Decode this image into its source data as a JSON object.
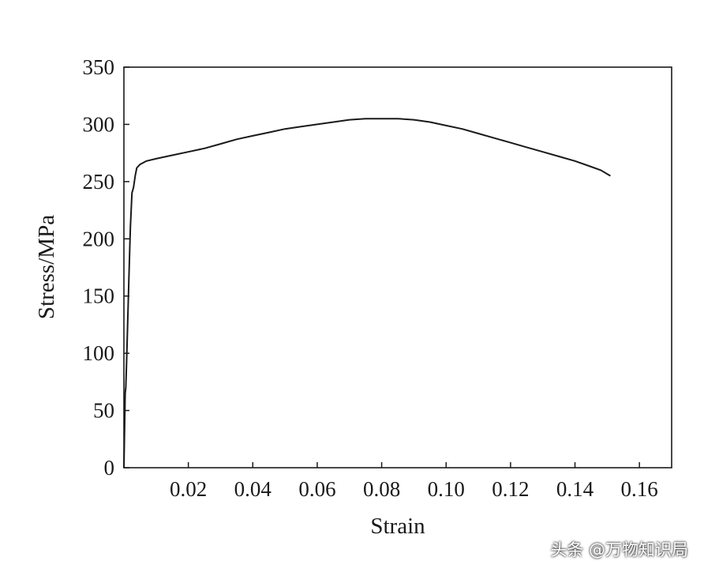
{
  "chart_data": {
    "type": "line",
    "xlabel": "Strain",
    "ylabel": "Stress/MPa",
    "xlim": [
      0,
      0.17
    ],
    "ylim": [
      0,
      350
    ],
    "x_ticks": [
      0.02,
      0.04,
      0.06,
      0.08,
      0.1,
      0.12,
      0.14,
      0.16
    ],
    "x_tick_labels": [
      "0.02",
      "0.04",
      "0.06",
      "0.08",
      "0.10",
      "0.12",
      "0.14",
      "0.16"
    ],
    "y_ticks": [
      0,
      50,
      100,
      150,
      200,
      250,
      300,
      350
    ],
    "y_tick_labels": [
      "0",
      "50",
      "100",
      "150",
      "200",
      "250",
      "300",
      "350"
    ],
    "grid": false,
    "colors": {
      "line": "#1a1a1a",
      "axis": "#1a1a1a",
      "background": "#ffffff"
    },
    "series": [
      {
        "x": [
          0,
          0.0004,
          0.0006,
          0.0008,
          0.0012,
          0.0016,
          0.002,
          0.0025,
          0.003,
          0.0035,
          0.004,
          0.005,
          0.007,
          0.01,
          0.015,
          0.02,
          0.025,
          0.03,
          0.035,
          0.04,
          0.045,
          0.05,
          0.055,
          0.06,
          0.065,
          0.07,
          0.075,
          0.08,
          0.085,
          0.09,
          0.095,
          0.1,
          0.105,
          0.11,
          0.115,
          0.12,
          0.125,
          0.13,
          0.135,
          0.14,
          0.145,
          0.148,
          0.151
        ],
        "y": [
          0,
          65,
          70,
          90,
          130,
          170,
          210,
          240,
          245,
          255,
          262,
          265,
          268,
          270,
          273,
          276,
          279,
          283,
          287,
          290,
          293,
          296,
          298,
          300,
          302,
          304,
          305,
          305,
          305,
          304,
          302,
          299,
          296,
          292,
          288,
          284,
          280,
          276,
          272,
          268,
          263,
          260,
          255
        ]
      }
    ]
  },
  "watermark": "头条 @万物知识局"
}
